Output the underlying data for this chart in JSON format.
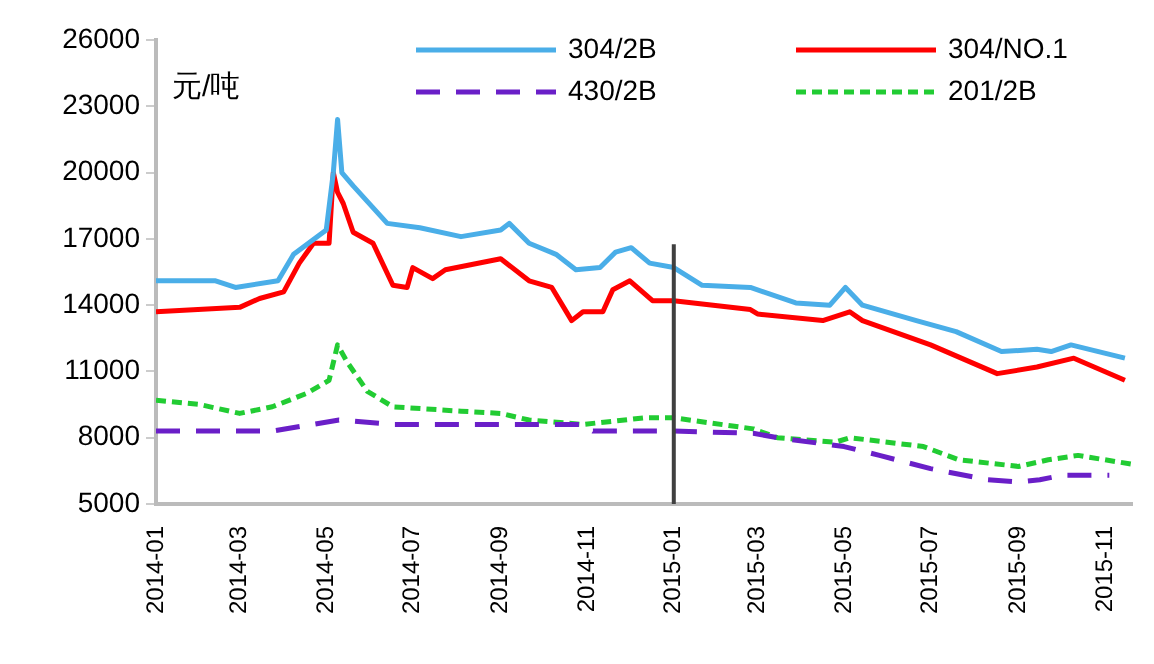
{
  "chart_data": {
    "type": "line",
    "ylabel": "元/吨",
    "xlim": [
      "2014-01-01",
      "2015-11-20"
    ],
    "xticks": [
      "2014-01",
      "2014-03",
      "2014-05",
      "2014-07",
      "2014-09",
      "2014-11",
      "2015-01",
      "2015-03",
      "2015-05",
      "2015-07",
      "2015-09",
      "2015-11"
    ],
    "ylim": [
      5000,
      26000
    ],
    "yticks": [
      5000,
      8000,
      11000,
      14000,
      17000,
      20000,
      23000,
      26000
    ],
    "grid": false,
    "legend": "top right",
    "marker": "none",
    "ref_lines": [
      {
        "axis": "x",
        "value": "2015-01-01",
        "color": "#404040",
        "line_style": "solid"
      }
    ],
    "series": [
      {
        "name": "304/2B",
        "color": "#4aaee8",
        "line_style": "solid",
        "x": [
          "2014-01-01",
          "2014-02-12",
          "2014-02-26",
          "2014-03-28",
          "2014-04-08",
          "2014-05-01",
          "2014-05-06",
          "2014-05-09",
          "2014-05-12",
          "2014-05-20",
          "2014-06-13",
          "2014-07-06",
          "2014-08-04",
          "2014-09-01",
          "2014-09-07",
          "2014-09-21",
          "2014-10-10",
          "2014-10-24",
          "2014-11-10",
          "2014-11-21",
          "2014-12-02",
          "2014-12-15",
          "2015-01-01",
          "2015-01-21",
          "2015-02-24",
          "2015-03-28",
          "2015-04-21",
          "2015-05-02",
          "2015-05-14",
          "2015-06-21",
          "2015-07-19",
          "2015-08-20",
          "2015-09-14",
          "2015-09-24",
          "2015-10-08",
          "2015-11-15"
        ],
        "values": [
          15100,
          15100,
          14800,
          15100,
          16300,
          17400,
          20000,
          22400,
          20000,
          19400,
          17700,
          17500,
          17100,
          17400,
          17700,
          16800,
          16300,
          15600,
          15700,
          16400,
          16600,
          15900,
          15700,
          14900,
          14800,
          14100,
          14000,
          14800,
          14000,
          13300,
          12800,
          11900,
          12000,
          11900,
          12200,
          11600
        ]
      },
      {
        "name": "304/NO.1",
        "color": "#ff0000",
        "line_style": "solid",
        "x": [
          "2014-01-01",
          "2014-03-01",
          "2014-03-15",
          "2014-04-01",
          "2014-04-12",
          "2014-04-22",
          "2014-05-03",
          "2014-05-06",
          "2014-05-09",
          "2014-05-13",
          "2014-05-20",
          "2014-06-03",
          "2014-06-17",
          "2014-06-27",
          "2014-07-01",
          "2014-07-15",
          "2014-07-24",
          "2014-09-01",
          "2014-09-21",
          "2014-10-07",
          "2014-10-21",
          "2014-10-29",
          "2014-11-12",
          "2014-11-19",
          "2014-12-01",
          "2014-12-17",
          "2015-01-01",
          "2015-02-24",
          "2015-03-01",
          "2015-04-16",
          "2015-05-05",
          "2015-05-14",
          "2015-07-01",
          "2015-08-17",
          "2015-09-14",
          "2015-10-10",
          "2015-11-15"
        ],
        "values": [
          13700,
          13900,
          14300,
          14600,
          15900,
          16800,
          16800,
          20000,
          19100,
          18600,
          17300,
          16800,
          14900,
          14800,
          15700,
          15200,
          15600,
          16100,
          15100,
          14800,
          13300,
          13700,
          13700,
          14700,
          15100,
          14200,
          14200,
          13800,
          13600,
          13300,
          13700,
          13300,
          12200,
          10900,
          11200,
          11600,
          10600
        ]
      },
      {
        "name": "430/2B",
        "color": "#6a1fc8",
        "line_style": "dashed",
        "x": [
          "2014-01-01",
          "2014-02-12",
          "2014-03-24",
          "2014-05-10",
          "2014-06-17",
          "2014-10-29",
          "2014-11-05",
          "2015-01-01",
          "2015-02-26",
          "2015-03-15",
          "2015-05-01",
          "2015-05-26",
          "2015-07-01",
          "2015-08-10",
          "2015-09-01",
          "2015-09-16",
          "2015-10-02",
          "2015-11-04"
        ],
        "values": [
          8300,
          8300,
          8300,
          8800,
          8600,
          8600,
          8300,
          8300,
          8200,
          8000,
          7600,
          7200,
          6600,
          6100,
          6000,
          6100,
          6300,
          6300
        ]
      },
      {
        "name": "201/2B",
        "color": "#22cc33",
        "line_style": "dotted",
        "x": [
          "2014-01-01",
          "2014-02-01",
          "2014-03-01",
          "2014-03-24",
          "2014-04-17",
          "2014-05-03",
          "2014-05-09",
          "2014-05-16",
          "2014-05-30",
          "2014-06-17",
          "2014-08-04",
          "2014-09-01",
          "2014-09-21",
          "2014-10-29",
          "2014-12-11",
          "2015-01-01",
          "2015-02-26",
          "2015-03-15",
          "2015-04-25",
          "2015-05-05",
          "2015-06-26",
          "2015-07-21",
          "2015-09-01",
          "2015-09-22",
          "2015-10-13",
          "2015-11-20"
        ],
        "values": [
          9700,
          9500,
          9100,
          9400,
          10000,
          10600,
          12200,
          11400,
          10100,
          9400,
          9200,
          9100,
          8800,
          8600,
          8900,
          8900,
          8400,
          8000,
          7800,
          8000,
          7600,
          7000,
          6700,
          7000,
          7200,
          6800
        ]
      }
    ]
  }
}
